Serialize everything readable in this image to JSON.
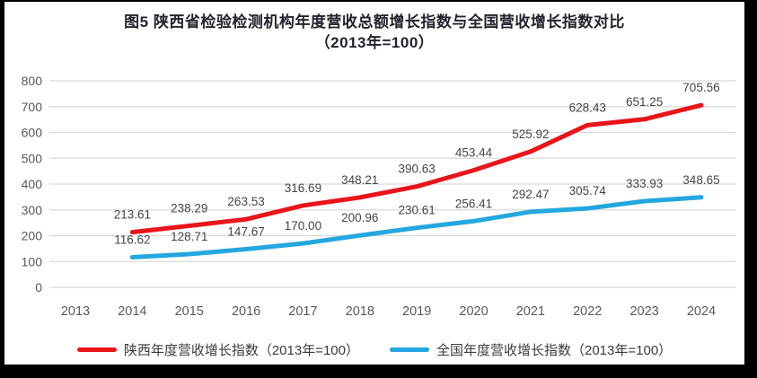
{
  "chart_data": {
    "type": "line",
    "title": "图5  陕西省检验检测机构年度营收总额增长指数与全国营收增长指数对比",
    "subtitle": "（2013年=100）",
    "categories": [
      "2013",
      "2014",
      "2015",
      "2016",
      "2017",
      "2018",
      "2019",
      "2020",
      "2021",
      "2022",
      "2023",
      "2024"
    ],
    "xlabel": "",
    "ylabel": "",
    "ylim": [
      0,
      800
    ],
    "ytick_interval": 100,
    "ytick_labels": [
      "0",
      "100",
      "200",
      "300",
      "400",
      "500",
      "600",
      "700",
      "800"
    ],
    "grid": "horizontal",
    "legend_position": "bottom",
    "series": [
      {
        "name": "陕西年度营收增长指数（2013年=100）",
        "color": "#e8151b",
        "values": [
          null,
          213.61,
          238.29,
          263.53,
          316.69,
          348.21,
          390.63,
          453.44,
          525.92,
          628.43,
          651.25,
          705.56
        ],
        "labels": [
          null,
          "213.61",
          "238.29",
          "263.53",
          "316.69",
          "348.21",
          "390.63",
          "453.44",
          "525.92",
          "628.43",
          "651.25",
          "705.56"
        ]
      },
      {
        "name": "全国年度营收增长指数（2013年=100）",
        "color": "#24a7df",
        "values": [
          null,
          116.62,
          128.71,
          147.67,
          170.0,
          200.96,
          230.61,
          256.41,
          292.47,
          305.74,
          333.93,
          348.65
        ],
        "labels": [
          null,
          "116.62",
          "128.71",
          "147.67",
          "170.00",
          "200.96",
          "230.61",
          "256.41",
          "292.47",
          "305.74",
          "333.93",
          "348.65"
        ]
      }
    ],
    "colors": {
      "grid": "#d9d9d9",
      "axis_text": "#595959",
      "data_label_text": "#454545",
      "title_text": "#21242c",
      "legend_text": "#3b3b3b"
    }
  }
}
